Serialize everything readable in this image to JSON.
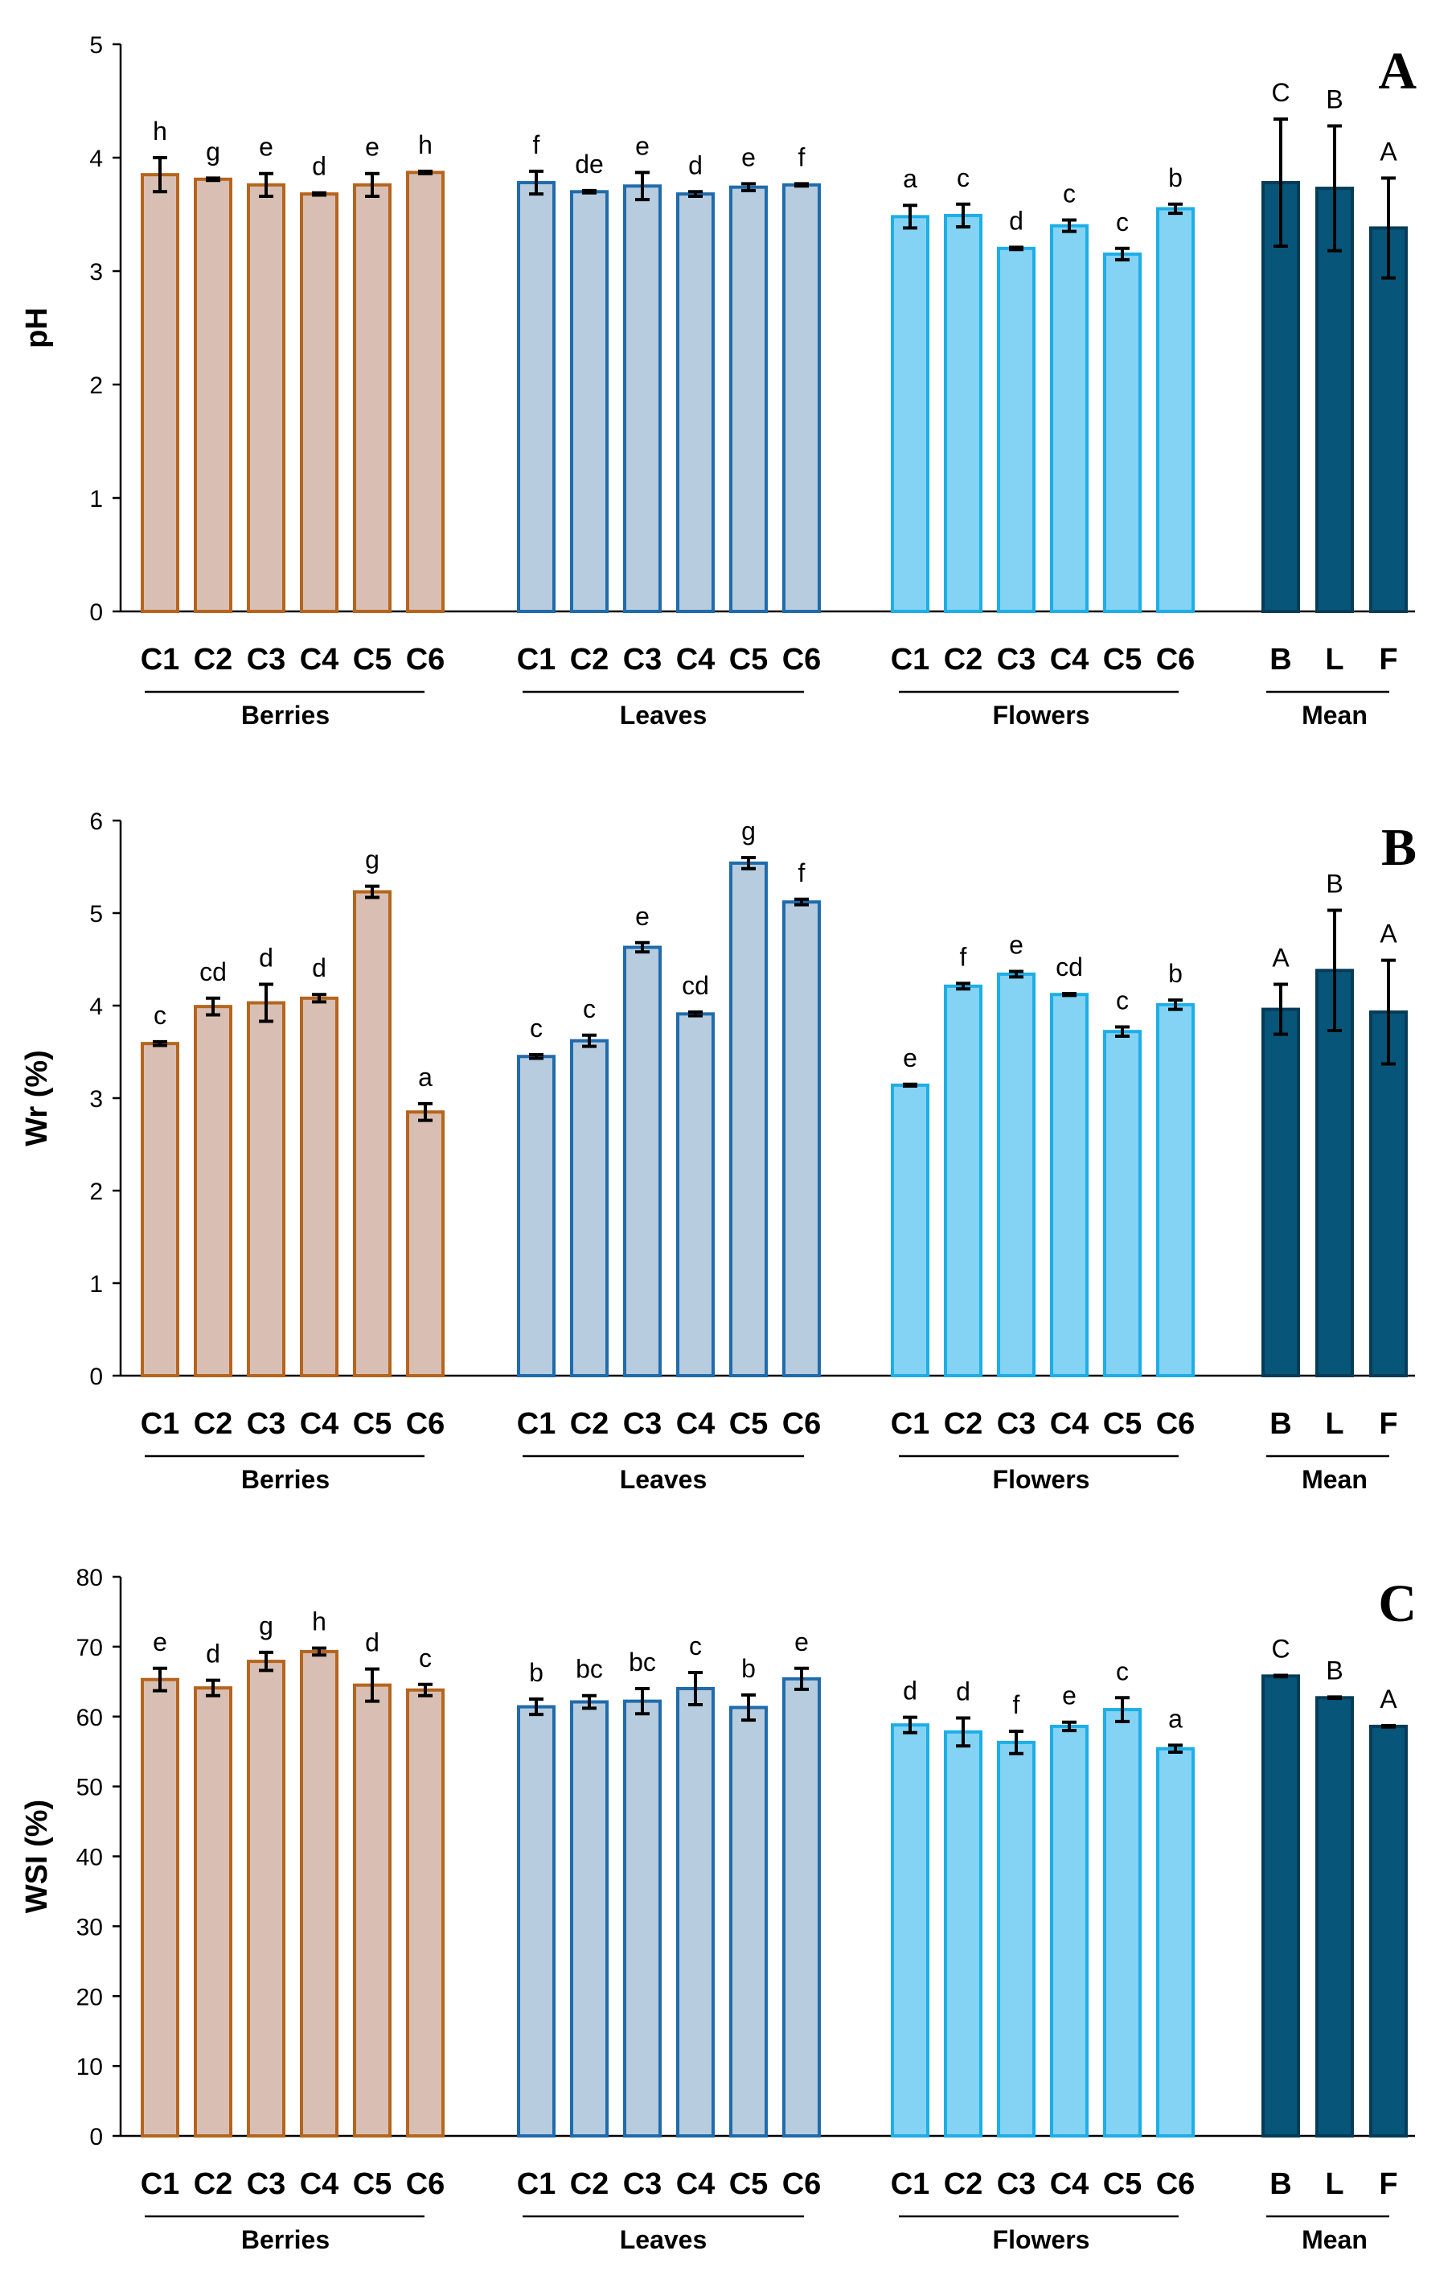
{
  "chart_data": [
    {
      "type": "bar",
      "panel_label": "A",
      "ylabel": "pH",
      "ylim": [
        0,
        5
      ],
      "yticks": [
        "0",
        "1",
        "2",
        "3",
        "4",
        "5"
      ],
      "groups": [
        {
          "name": "Berries",
          "fill": "#d9bfb3",
          "stroke": "#b5651d",
          "categories": [
            "C1",
            "C2",
            "C3",
            "C4",
            "C5",
            "C6"
          ],
          "values": [
            3.85,
            3.81,
            3.76,
            3.68,
            3.76,
            3.87
          ],
          "errors": [
            0.15,
            0.01,
            0.1,
            0.01,
            0.1,
            0.01
          ],
          "letters": [
            "h",
            "g",
            "e",
            "d",
            "e",
            "h"
          ]
        },
        {
          "name": "Leaves",
          "fill": "#b7ccde",
          "stroke": "#1f6bab",
          "categories": [
            "C1",
            "C2",
            "C3",
            "C4",
            "C5",
            "C6"
          ],
          "values": [
            3.78,
            3.7,
            3.75,
            3.68,
            3.74,
            3.76
          ],
          "errors": [
            0.1,
            0.01,
            0.12,
            0.02,
            0.03,
            0.01
          ],
          "letters": [
            "f",
            "de",
            "e",
            "d",
            "e",
            "f"
          ]
        },
        {
          "name": "Flowers",
          "fill": "#84d3f5",
          "stroke": "#1eaee6",
          "categories": [
            "C1",
            "C2",
            "C3",
            "C4",
            "C5",
            "C6"
          ],
          "values": [
            3.48,
            3.49,
            3.2,
            3.4,
            3.15,
            3.55
          ],
          "errors": [
            0.1,
            0.1,
            0.01,
            0.05,
            0.05,
            0.04
          ],
          "letters": [
            "a",
            "c",
            "d",
            "c",
            "c",
            "b"
          ]
        },
        {
          "name": "Mean",
          "fill": "#08557a",
          "stroke": "#073c58",
          "categories": [
            "B",
            "L",
            "F"
          ],
          "values": [
            3.78,
            3.73,
            3.38
          ],
          "errors": [
            0.56,
            0.55,
            0.44
          ],
          "letters": [
            "C",
            "B",
            "A"
          ]
        }
      ]
    },
    {
      "type": "bar",
      "panel_label": "B",
      "ylabel": "Wr (%)",
      "ylim": [
        0,
        6
      ],
      "yticks": [
        "0",
        "1",
        "2",
        "3",
        "4",
        "5",
        "6"
      ],
      "groups": [
        {
          "name": "Berries",
          "fill": "#d9bfb3",
          "stroke": "#b5651d",
          "categories": [
            "C1",
            "C2",
            "C3",
            "C4",
            "C5",
            "C6"
          ],
          "values": [
            3.59,
            3.99,
            4.03,
            4.08,
            5.23,
            2.85
          ],
          "errors": [
            0.02,
            0.09,
            0.2,
            0.04,
            0.06,
            0.09
          ],
          "letters": [
            "c",
            "cd",
            "d",
            "d",
            "g",
            "a"
          ]
        },
        {
          "name": "Leaves",
          "fill": "#b7ccde",
          "stroke": "#1f6bab",
          "categories": [
            "C1",
            "C2",
            "C3",
            "C4",
            "C5",
            "C6"
          ],
          "values": [
            3.45,
            3.62,
            4.63,
            3.91,
            5.54,
            5.12
          ],
          "errors": [
            0.02,
            0.06,
            0.05,
            0.02,
            0.06,
            0.03
          ],
          "letters": [
            "c",
            "c",
            "e",
            "cd",
            "g",
            "f"
          ]
        },
        {
          "name": "Flowers",
          "fill": "#84d3f5",
          "stroke": "#1eaee6",
          "categories": [
            "C1",
            "C2",
            "C3",
            "C4",
            "C5",
            "C6"
          ],
          "values": [
            3.14,
            4.21,
            4.34,
            4.12,
            3.72,
            4.01
          ],
          "errors": [
            0.01,
            0.03,
            0.03,
            0.01,
            0.05,
            0.05
          ],
          "letters": [
            "e",
            "f",
            "e",
            "cd",
            "c",
            "b"
          ]
        },
        {
          "name": "Mean",
          "fill": "#08557a",
          "stroke": "#073c58",
          "categories": [
            "B",
            "L",
            "F"
          ],
          "values": [
            3.96,
            4.38,
            3.93
          ],
          "errors": [
            0.27,
            0.65,
            0.56
          ],
          "letters": [
            "A",
            "B",
            "A"
          ]
        }
      ]
    },
    {
      "type": "bar",
      "panel_label": "C",
      "ylabel": "WSI (%)",
      "ylim": [
        0,
        80
      ],
      "yticks": [
        "0",
        "10",
        "20",
        "30",
        "40",
        "50",
        "60",
        "70",
        "80"
      ],
      "groups": [
        {
          "name": "Berries",
          "fill": "#d9bfb3",
          "stroke": "#b5651d",
          "categories": [
            "C1",
            "C2",
            "C3",
            "C4",
            "C5",
            "C6"
          ],
          "values": [
            65.3,
            64.1,
            67.9,
            69.3,
            64.5,
            63.8
          ],
          "errors": [
            1.6,
            1.1,
            1.3,
            0.5,
            2.3,
            0.8
          ],
          "letters": [
            "e",
            "d",
            "g",
            "h",
            "d",
            "c"
          ]
        },
        {
          "name": "Leaves",
          "fill": "#b7ccde",
          "stroke": "#1f6bab",
          "categories": [
            "C1",
            "C2",
            "C3",
            "C4",
            "C5",
            "C6"
          ],
          "values": [
            61.4,
            62.1,
            62.2,
            64.0,
            61.3,
            65.4
          ],
          "errors": [
            1.1,
            0.9,
            1.8,
            2.3,
            1.8,
            1.5
          ],
          "letters": [
            "b",
            "bc",
            "bc",
            "c",
            "b",
            "e"
          ]
        },
        {
          "name": "Flowers",
          "fill": "#84d3f5",
          "stroke": "#1eaee6",
          "categories": [
            "C1",
            "C2",
            "C3",
            "C4",
            "C5",
            "C6"
          ],
          "values": [
            58.8,
            57.8,
            56.3,
            58.6,
            61.0,
            55.4
          ],
          "errors": [
            1.1,
            2.0,
            1.6,
            0.6,
            1.7,
            0.5
          ],
          "letters": [
            "d",
            "d",
            "f",
            "e",
            "c",
            "a"
          ]
        },
        {
          "name": "Mean",
          "fill": "#08557a",
          "stroke": "#073c58",
          "categories": [
            "B",
            "L",
            "F"
          ],
          "values": [
            65.8,
            62.7,
            58.6
          ],
          "errors": [
            0.1,
            0.1,
            0.1
          ],
          "letters": [
            "C",
            "B",
            "A"
          ]
        }
      ]
    }
  ]
}
